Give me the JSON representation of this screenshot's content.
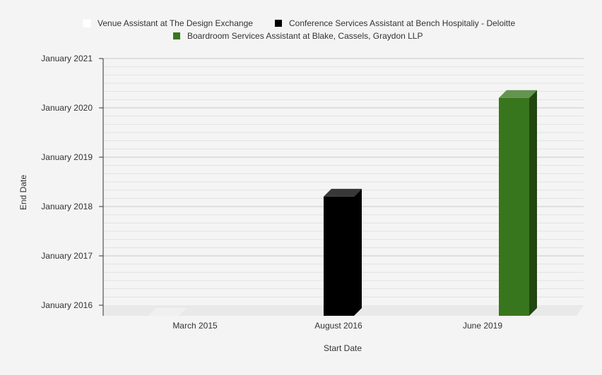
{
  "chart_data": {
    "type": "bar",
    "title": "",
    "xlabel": "Start Date",
    "ylabel": "End Date",
    "categories": [
      "March 2015",
      "August 2016",
      "June 2019"
    ],
    "y_tick_labels": [
      "January 2016",
      "January 2017",
      "January 2018",
      "January 2019",
      "January 2020",
      "January 2021"
    ],
    "ylim": [
      "2016-01",
      "2021-01"
    ],
    "minor_gridlines_per_year": 5,
    "grid": true,
    "three_d": true,
    "legend_position": "top",
    "series": [
      {
        "name": "Venue  Assistant at The Design Exchange",
        "category_index": 0,
        "end_date": "2016-01",
        "color": "#ffffff"
      },
      {
        "name": "Conference Services Assistant at Bench Hospitaliy - Deloitte",
        "category_index": 1,
        "end_date": "2018-06",
        "color": "#000000"
      },
      {
        "name": "Boardroom Services Assistant at Blake, Cassels, Graydon LLP",
        "category_index": 2,
        "end_date": "2020-06",
        "color": "#38761d"
      }
    ]
  }
}
